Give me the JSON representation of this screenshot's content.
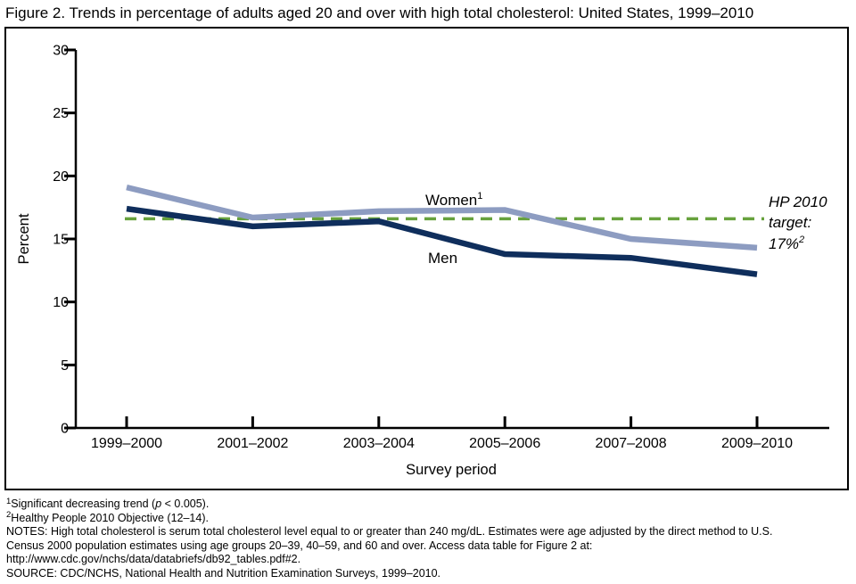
{
  "title": "Figure 2. Trends in percentage of adults aged 20 and over with high total cholesterol: United States, 1999–2010",
  "chart_data": {
    "type": "line",
    "title": "Figure 2. Trends in percentage of adults aged 20 and over with high total cholesterol: United States, 1999–2010",
    "xlabel": "Survey period",
    "ylabel": "Percent",
    "ylim": [
      0,
      30
    ],
    "y_ticks": [
      0,
      5,
      10,
      15,
      20,
      25,
      30
    ],
    "grid": false,
    "legend_position": "inline-labels",
    "categories": [
      "1999–2000",
      "2001–2002",
      "2003–2004",
      "2005–2006",
      "2007–2008",
      "2009–2010"
    ],
    "series": [
      {
        "name": "Women",
        "label_superscript": "1",
        "color": "#8d9cc1",
        "values": [
          19.1,
          16.7,
          17.2,
          17.3,
          15.0,
          14.3
        ]
      },
      {
        "name": "Men",
        "label_superscript": "",
        "color": "#0f2e5c",
        "values": [
          17.4,
          16.0,
          16.4,
          13.8,
          13.5,
          12.2
        ]
      }
    ],
    "hp_target": {
      "lines": [
        "HP 2010",
        "target:",
        "17%"
      ],
      "superscript": "2",
      "value_percent": 17,
      "drawn_at_percent": 16.6,
      "color": "#67a23d",
      "style": "dashed"
    }
  },
  "footnotes": {
    "fn1": {
      "sup": "1",
      "pre": "Significant decreasing trend (",
      "italic": "p",
      "post": " < 0.005)."
    },
    "fn2": {
      "sup": "2",
      "text": "Healthy People 2010 Objective (12–14)."
    },
    "notes_line1": "NOTES: High total cholesterol is serum total cholesterol level equal to or greater than 240 mg/dL. Estimates were age adjusted by the direct method to U.S.",
    "notes_line2": "Census 2000 population estimates using age groups 20–39, 40–59, and 60 and over. Access data table for Figure 2 at:",
    "notes_line3": "http://www.cdc.gov/nchs/data/databriefs/db92_tables.pdf#2.",
    "source": "SOURCE: CDC/NCHS, National Health and Nutrition Examination Surveys, 1999–2010."
  }
}
